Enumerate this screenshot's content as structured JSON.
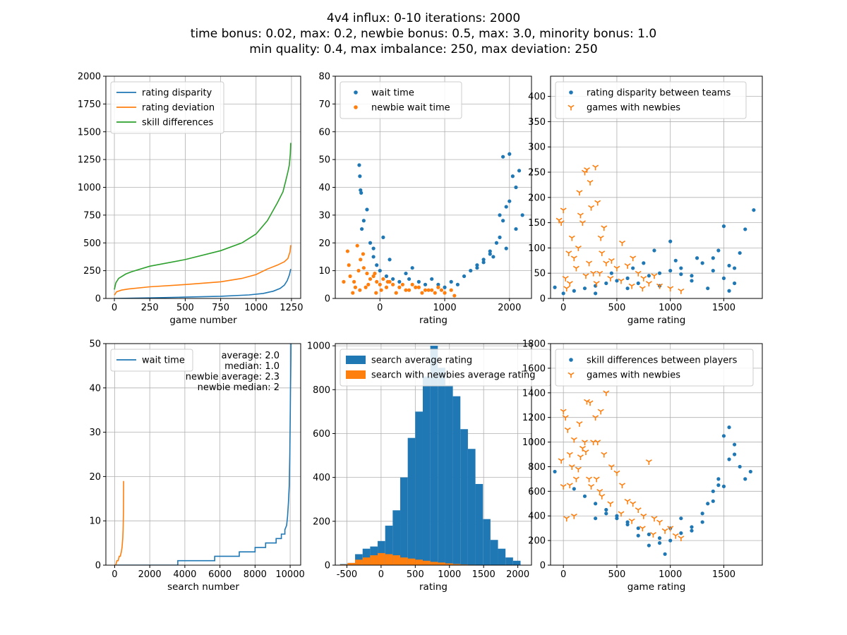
{
  "figure": {
    "title_lines": [
      "4v4 influx: 0-10 iterations: 2000",
      "time bonus: 0.02, max: 0.2, newbie bonus: 0.5, max: 3.0, minority bonus: 1.0",
      "min quality: 0.4, max imbalance: 250, max deviation: 250"
    ]
  },
  "colors": {
    "blue": "#1f77b4",
    "orange": "#ff7f0e",
    "green": "#2ca02c",
    "grid": "#b0b0b0"
  },
  "chart_data": [
    {
      "type": "line",
      "xlabel": "game number",
      "ylabel": "",
      "xlim": [
        -60,
        1315
      ],
      "ylim": [
        0,
        2000
      ],
      "xticks": [
        0,
        250,
        500,
        750,
        1000,
        1250
      ],
      "yticks": [
        0,
        250,
        500,
        750,
        1000,
        1250,
        1500,
        1750,
        2000
      ],
      "legend": [
        "rating disparity",
        "rating deviation",
        "skill differences"
      ],
      "series": [
        {
          "name": "rating disparity",
          "color": "blue",
          "x": [
            0,
            250,
            500,
            750,
            950,
            1050,
            1120,
            1170,
            1200,
            1220,
            1235,
            1245
          ],
          "y": [
            0,
            5,
            12,
            20,
            32,
            45,
            65,
            90,
            120,
            160,
            210,
            265
          ]
        },
        {
          "name": "rating deviation",
          "color": "orange",
          "x": [
            0,
            15,
            50,
            100,
            250,
            500,
            750,
            900,
            1000,
            1080,
            1150,
            1200,
            1225,
            1240,
            1245
          ],
          "y": [
            30,
            60,
            75,
            85,
            105,
            125,
            150,
            180,
            215,
            265,
            300,
            330,
            360,
            420,
            480
          ]
        },
        {
          "name": "skill differences",
          "color": "green",
          "x": [
            0,
            10,
            30,
            80,
            120,
            250,
            500,
            750,
            900,
            1000,
            1080,
            1150,
            1190,
            1210,
            1225,
            1235,
            1242,
            1245
          ],
          "y": [
            80,
            140,
            180,
            220,
            240,
            290,
            350,
            430,
            500,
            580,
            700,
            860,
            960,
            1060,
            1140,
            1200,
            1300,
            1400
          ]
        }
      ]
    },
    {
      "type": "scatter",
      "xlabel": "rating",
      "ylabel": "",
      "xlim": [
        -690,
        2340
      ],
      "ylim": [
        0,
        80
      ],
      "xticks": [
        0,
        1000,
        2000
      ],
      "yticks": [
        0,
        10,
        20,
        30,
        40,
        50,
        60,
        70,
        80
      ],
      "legend": [
        "wait time",
        "newbie wait time"
      ],
      "series": [
        {
          "name": "wait time",
          "color": "blue",
          "marker": "dot",
          "x": [
            -320,
            -310,
            -300,
            -290,
            -280,
            -200,
            -150,
            -100,
            -50,
            0,
            100,
            200,
            300,
            400,
            500,
            600,
            700,
            800,
            900,
            1000,
            1100,
            1200,
            1300,
            1400,
            1500,
            1600,
            1700,
            1750,
            1800,
            1850,
            1900,
            1950,
            2000,
            2050,
            2100,
            2150,
            2200,
            1900,
            2000,
            2100,
            1950,
            1850,
            1700,
            1600,
            1500,
            -250,
            50,
            -100,
            150,
            450
          ],
          "y": [
            48,
            44,
            39,
            38,
            25,
            32,
            20,
            15,
            12,
            10,
            8,
            7,
            6,
            9,
            11,
            6,
            5,
            7,
            5,
            4,
            6,
            5,
            8,
            10,
            12,
            14,
            16,
            15,
            20,
            22,
            28,
            33,
            52,
            44,
            40,
            46,
            30,
            51,
            35,
            25,
            18,
            30,
            17,
            13,
            11,
            28,
            22,
            18,
            14,
            7
          ]
        },
        {
          "name": "newbie wait time",
          "color": "orange",
          "x": [
            -560,
            -500,
            -480,
            -460,
            -400,
            -380,
            -350,
            -300,
            -250,
            -200,
            -150,
            -100,
            -50,
            0,
            50,
            100,
            150,
            200,
            300,
            400,
            500,
            600,
            700,
            800,
            900,
            1000,
            1100,
            1150,
            -330,
            -260,
            -180,
            -80,
            20,
            120,
            250,
            350,
            450,
            550,
            650,
            750,
            850,
            950,
            -420,
            -310,
            -220,
            -60
          ],
          "y": [
            6,
            17,
            12,
            8,
            6,
            4,
            19,
            14,
            11,
            9,
            7,
            8,
            6,
            5,
            7,
            4,
            6,
            5,
            4,
            3,
            5,
            4,
            3,
            3,
            4,
            2,
            3,
            1,
            10,
            16,
            5,
            9,
            3,
            6,
            2,
            5,
            3,
            4,
            2,
            3,
            2,
            3,
            2,
            3,
            4,
            2
          ]
        }
      ]
    },
    {
      "type": "scatter",
      "xlabel": "game rating",
      "ylabel": "",
      "xlim": [
        -120,
        1860
      ],
      "ylim": [
        0,
        440
      ],
      "xticks": [
        0,
        500,
        1000,
        1500
      ],
      "yticks": [
        0,
        50,
        100,
        150,
        200,
        250,
        300,
        350,
        400
      ],
      "legend": [
        "rating disparity between teams",
        "games with newbies"
      ],
      "series": [
        {
          "name": "rating disparity between teams",
          "color": "blue",
          "marker": "dot",
          "x": [
            -80,
            0,
            100,
            200,
            300,
            400,
            500,
            600,
            700,
            800,
            900,
            1000,
            1100,
            1200,
            1300,
            1400,
            1450,
            1500,
            1550,
            1600,
            1650,
            1700,
            1780,
            1500,
            1200,
            900,
            600,
            300,
            1000,
            1350,
            1550,
            1400,
            1250,
            1050,
            850,
            650,
            450,
            1600,
            1100,
            750
          ],
          "y": [
            22,
            10,
            15,
            20,
            25,
            30,
            35,
            40,
            30,
            45,
            50,
            55,
            60,
            45,
            70,
            80,
            95,
            143,
            65,
            60,
            90,
            137,
            175,
            40,
            35,
            25,
            20,
            10,
            113,
            20,
            15,
            55,
            80,
            75,
            95,
            60,
            50,
            30,
            48,
            70
          ]
        },
        {
          "name": "games with newbies",
          "color": "orange",
          "marker": "tri",
          "x": [
            -40,
            -20,
            0,
            20,
            50,
            80,
            100,
            120,
            150,
            180,
            200,
            220,
            250,
            280,
            300,
            320,
            350,
            380,
            400,
            450,
            500,
            550,
            600,
            650,
            700,
            750,
            800,
            850,
            900,
            1000,
            1100,
            60,
            140,
            240,
            340,
            440,
            540,
            640,
            740,
            160,
            260,
            360,
            30,
            210,
            310
          ],
          "y": [
            155,
            150,
            175,
            40,
            90,
            120,
            80,
            60,
            210,
            150,
            250,
            255,
            230,
            50,
            260,
            190,
            120,
            140,
            70,
            75,
            60,
            110,
            65,
            80,
            50,
            40,
            30,
            45,
            25,
            20,
            15,
            30,
            100,
            70,
            50,
            40,
            35,
            25,
            20,
            165,
            180,
            90,
            20,
            45,
            30
          ]
        }
      ]
    },
    {
      "type": "line",
      "xlabel": "search number",
      "ylabel": "",
      "xlim": [
        -500,
        10600
      ],
      "ylim": [
        0,
        50
      ],
      "xticks": [
        0,
        2000,
        4000,
        6000,
        8000,
        10000
      ],
      "yticks": [
        0,
        10,
        20,
        30,
        40,
        50
      ],
      "legend": [
        "wait time"
      ],
      "annotations": [
        "average: 2.0",
        "median: 1.0",
        "newbie average: 2.3",
        "newbie median: 2"
      ],
      "series": [
        {
          "name": "wait time",
          "color": "blue",
          "x": [
            0,
            3600,
            3600,
            5700,
            5700,
            7100,
            7100,
            8000,
            8000,
            8600,
            8600,
            9200,
            9200,
            9500,
            9500,
            9700,
            9700,
            9800,
            9850,
            9900,
            9950,
            9980,
            10000,
            10020,
            10040,
            10050
          ],
          "y": [
            0,
            0,
            1,
            1,
            2,
            2,
            3,
            3,
            4,
            4,
            5,
            5,
            6,
            6,
            7,
            7,
            8,
            9,
            11,
            14,
            18,
            25,
            32,
            40,
            46,
            50
          ]
        },
        {
          "name": "newbie wait time",
          "color": "orange",
          "x": [
            0,
            60,
            130,
            200,
            260,
            320,
            380,
            420,
            460,
            480,
            500,
            510
          ],
          "y": [
            0,
            0,
            1,
            1,
            2,
            2,
            3,
            4,
            6,
            8,
            12,
            19
          ]
        }
      ]
    },
    {
      "type": "bar",
      "xlabel": "rating",
      "ylabel": "",
      "xlim": [
        -670,
        2200
      ],
      "ylim": [
        0,
        1010
      ],
      "xticks": [
        -500,
        0,
        500,
        1000,
        1500,
        2000
      ],
      "yticks": [
        0,
        200,
        400,
        600,
        800,
        1000
      ],
      "legend": [
        "search average rating",
        "search with newbies average rating"
      ],
      "bin_start": -600,
      "bin_width": 110,
      "series": [
        {
          "name": "search average rating",
          "color": "blue",
          "values": [
            5,
            10,
            50,
            75,
            85,
            110,
            180,
            250,
            400,
            580,
            700,
            860,
            1000,
            900,
            820,
            770,
            620,
            530,
            370,
            210,
            115,
            75,
            35,
            20,
            0
          ]
        },
        {
          "name": "search with newbies average rating",
          "color": "orange",
          "values": [
            3,
            10,
            25,
            35,
            45,
            55,
            50,
            45,
            35,
            30,
            25,
            20,
            15,
            12,
            8,
            5,
            3,
            2,
            0,
            0,
            0,
            0,
            0,
            0,
            0
          ]
        }
      ]
    },
    {
      "type": "scatter",
      "xlabel": "game rating",
      "ylabel": "",
      "xlim": [
        -120,
        1860
      ],
      "ylim": [
        0,
        1800
      ],
      "xticks": [
        0,
        500,
        1000,
        1500
      ],
      "yticks": [
        0,
        200,
        400,
        600,
        800,
        1000,
        1200,
        1400,
        1600,
        1800
      ],
      "legend": [
        "skill differences between players",
        "games with newbies"
      ],
      "series": [
        {
          "name": "skill differences between players",
          "color": "blue",
          "marker": "dot",
          "x": [
            -80,
            100,
            200,
            300,
            400,
            500,
            600,
            700,
            800,
            900,
            1000,
            1100,
            1200,
            1300,
            1350,
            1400,
            1450,
            1500,
            1550,
            1600,
            1650,
            1700,
            1750,
            1500,
            1400,
            1300,
            1200,
            1100,
            1000,
            900,
            800,
            700,
            600,
            500,
            400,
            300,
            1550,
            1600,
            1450,
            950
          ],
          "y": [
            760,
            620,
            560,
            500,
            420,
            380,
            350,
            300,
            250,
            220,
            300,
            380,
            280,
            350,
            500,
            600,
            700,
            1050,
            1120,
            980,
            800,
            700,
            760,
            640,
            520,
            420,
            310,
            260,
            200,
            180,
            160,
            240,
            330,
            400,
            450,
            380,
            860,
            900,
            650,
            90
          ]
        },
        {
          "name": "games with newbies",
          "color": "orange",
          "marker": "tri",
          "x": [
            -20,
            0,
            20,
            40,
            60,
            80,
            100,
            120,
            150,
            180,
            200,
            220,
            250,
            280,
            300,
            320,
            350,
            380,
            400,
            450,
            500,
            550,
            600,
            650,
            700,
            750,
            800,
            850,
            900,
            950,
            1000,
            1050,
            1100,
            60,
            140,
            240,
            340,
            440,
            540,
            640,
            740,
            840,
            160,
            260,
            360,
            30,
            210,
            310,
            0,
            100
          ],
          "y": [
            850,
            1250,
            1200,
            1100,
            900,
            800,
            1020,
            700,
            1150,
            950,
            1000,
            1330,
            1320,
            1000,
            1200,
            1000,
            1250,
            900,
            1400,
            800,
            750,
            650,
            520,
            500,
            450,
            400,
            840,
            380,
            350,
            280,
            300,
            240,
            220,
            650,
            780,
            700,
            600,
            500,
            420,
            360,
            300,
            250,
            880,
            640,
            560,
            380,
            920,
            700,
            640,
            400
          ]
        }
      ]
    }
  ]
}
